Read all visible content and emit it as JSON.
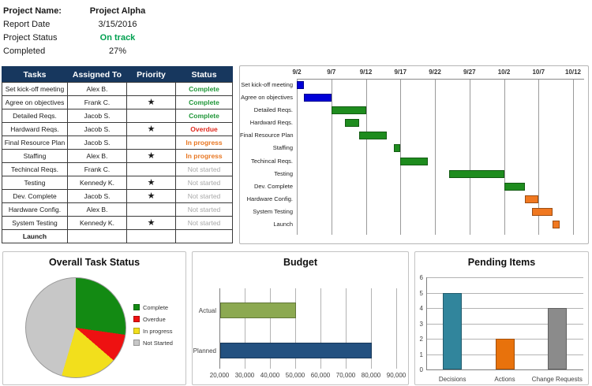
{
  "header": {
    "project_name_label": "Project Name:",
    "project_name": "Project Alpha",
    "report_date_label": "Report Date",
    "report_date": "3/15/2016",
    "project_status_label": "Project Status",
    "project_status": "On track",
    "completed_label": "Completed",
    "completed_value": "27%"
  },
  "colors": {
    "header_navy": "#17375e",
    "status_complete": "#1f9638",
    "status_overdue": "#e02b20",
    "status_in_progress": "#e87722",
    "status_not_started": "#a8a8a8",
    "launch_row_green": "#c9dca2",
    "on_track_green": "#00a050"
  },
  "task_table": {
    "columns": [
      "Tasks",
      "Assigned To",
      "Priority",
      "Status"
    ],
    "priority_star": "★",
    "rows": [
      {
        "task": "Set kick-off meeting",
        "assigned": "Alex B.",
        "priority": false,
        "status": "Complete",
        "status_type": "complete"
      },
      {
        "task": "Agree on objectives",
        "assigned": "Frank C.",
        "priority": true,
        "status": "Complete",
        "status_type": "complete"
      },
      {
        "task": "Detailed Reqs.",
        "assigned": "Jacob S.",
        "priority": false,
        "status": "Complete",
        "status_type": "complete"
      },
      {
        "task": "Hardward Reqs.",
        "assigned": "Jacob S.",
        "priority": true,
        "status": "Overdue",
        "status_type": "overdue"
      },
      {
        "task": "Final Resource Plan",
        "assigned": "Jacob S.",
        "priority": false,
        "status": "In progress",
        "status_type": "inprogress"
      },
      {
        "task": "Staffing",
        "assigned": "Alex B.",
        "priority": true,
        "status": "In progress",
        "status_type": "inprogress"
      },
      {
        "task": "Techincal Reqs.",
        "assigned": "Frank C.",
        "priority": false,
        "status": "Not started",
        "status_type": "notstarted"
      },
      {
        "task": "Testing",
        "assigned": "Kennedy K.",
        "priority": true,
        "status": "Not started",
        "status_type": "notstarted"
      },
      {
        "task": "Dev. Complete",
        "assigned": "Jacob S.",
        "priority": true,
        "status": "Not started",
        "status_type": "notstarted"
      },
      {
        "task": "Hardware Config.",
        "assigned": "Alex B.",
        "priority": false,
        "status": "Not started",
        "status_type": "notstarted"
      },
      {
        "task": "System Testing",
        "assigned": "Kennedy K.",
        "priority": true,
        "status": "Not started",
        "status_type": "notstarted"
      },
      {
        "task": "Launch",
        "assigned": "",
        "priority": false,
        "status": "",
        "status_type": "launch"
      }
    ]
  },
  "chart_data": [
    {
      "type": "gantt",
      "title": "",
      "axis_position": "top",
      "x_tick_labels": [
        "9/2",
        "9/7",
        "9/12",
        "9/17",
        "9/22",
        "9/27",
        "10/2",
        "10/7",
        "10/12"
      ],
      "x_range_days": [
        0,
        40
      ],
      "days_per_tick": 5,
      "tasks": [
        {
          "name": "Set kick-off meeting",
          "start_day": 0,
          "duration_days": 1,
          "color": "#0000d8"
        },
        {
          "name": "Agree on objectives",
          "start_day": 1,
          "duration_days": 4,
          "color": "#0000d8"
        },
        {
          "name": "Detailed Reqs.",
          "start_day": 5,
          "duration_days": 5,
          "color": "#1e8c1e"
        },
        {
          "name": "Hardward Reqs.",
          "start_day": 7,
          "duration_days": 2,
          "color": "#1e8c1e"
        },
        {
          "name": "Final Resource Plan",
          "start_day": 9,
          "duration_days": 4,
          "color": "#1e8c1e"
        },
        {
          "name": "Staffing",
          "start_day": 14,
          "duration_days": 1,
          "color": "#1e8c1e"
        },
        {
          "name": "Techincal Reqs.",
          "start_day": 15,
          "duration_days": 4,
          "color": "#1e8c1e"
        },
        {
          "name": "Testing",
          "start_day": 22,
          "duration_days": 8,
          "color": "#1e8c1e"
        },
        {
          "name": "Dev. Complete",
          "start_day": 30,
          "duration_days": 3,
          "color": "#1e8c1e"
        },
        {
          "name": "Hardware Config.",
          "start_day": 33,
          "duration_days": 2,
          "color": "#f07820"
        },
        {
          "name": "System Testing",
          "start_day": 34,
          "duration_days": 3,
          "color": "#f07820"
        },
        {
          "name": "Launch",
          "start_day": 37,
          "duration_days": 1,
          "color": "#f07820"
        }
      ]
    },
    {
      "type": "pie",
      "title": "Overall Task Status",
      "labels": [
        "Complete",
        "Overdue",
        "In progress",
        "Not Started"
      ],
      "values": [
        3,
        1,
        2,
        5
      ],
      "percentages": [
        27.3,
        9.1,
        18.2,
        45.5
      ],
      "colors": [
        "#138a13",
        "#ee1111",
        "#f2df1c",
        "#c7c7c7"
      ],
      "legend_position": "right",
      "start_angle_deg": 0,
      "direction": "clockwise"
    },
    {
      "type": "bar",
      "orientation": "horizontal",
      "title": "Budget",
      "categories": [
        "Actual",
        "Planned"
      ],
      "values": [
        50000,
        80000
      ],
      "colors": [
        "#8ca951",
        "#235180"
      ],
      "x_tick_labels": [
        "20,000",
        "30,000",
        "40,000",
        "50,000",
        "60,000",
        "70,000",
        "80,000",
        "90,000"
      ],
      "xlim": [
        20000,
        90000
      ],
      "grid": true
    },
    {
      "type": "bar",
      "orientation": "vertical",
      "title": "Pending Items",
      "categories": [
        "Decisions",
        "Actions",
        "Change Requests"
      ],
      "values": [
        5,
        2,
        4
      ],
      "colors": [
        "#31859c",
        "#e8720c",
        "#8b8b8b"
      ],
      "ylim": [
        0,
        6
      ],
      "y_ticks": [
        0,
        1,
        2,
        3,
        4,
        5,
        6
      ],
      "grid": true
    }
  ]
}
